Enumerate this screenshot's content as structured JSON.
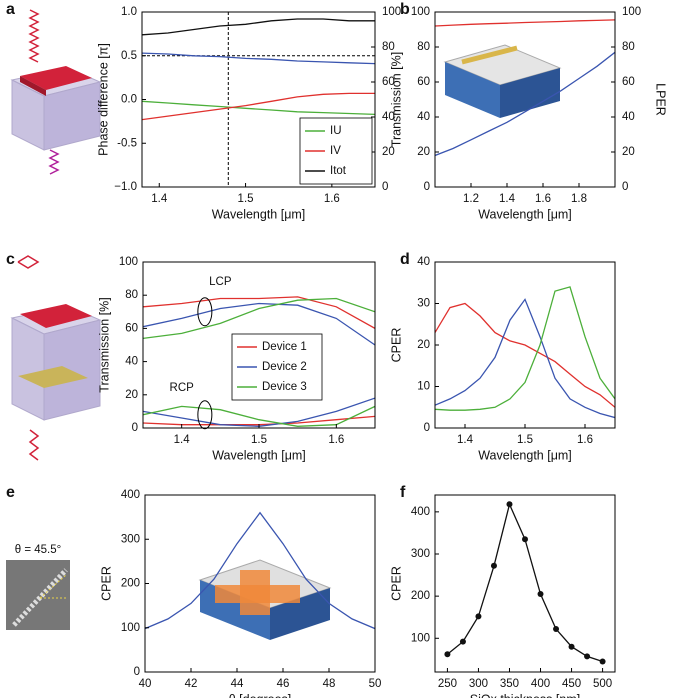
{
  "chart_data": [
    {
      "type": "line",
      "label": "a",
      "xlabel": "Wavelength [μm]",
      "ylabel": "Phase difference [π]",
      "xlim": [
        1.38,
        1.65
      ],
      "xticks": [
        1.4,
        1.5,
        1.6
      ],
      "ylim": [
        -1,
        1
      ],
      "yticks": [
        {
          "value": -1,
          "label": "−1.0"
        },
        -0.5,
        {
          "value": 0,
          "label": "0.0"
        },
        0.5,
        {
          "value": 1,
          "label": "1.0"
        }
      ],
      "y2lim": [
        0,
        100
      ],
      "y2ticks": [
        0,
        20,
        40,
        60,
        80,
        100
      ],
      "legend": "lower right",
      "hline": 0.5,
      "vline": 1.48,
      "x": [
        1.38,
        1.41,
        1.44,
        1.47,
        1.5,
        1.53,
        1.56,
        1.59,
        1.62,
        1.65
      ],
      "series": [
        {
          "name": "IU",
          "color": "#4caf3a",
          "values": [
            -0.02,
            -0.04,
            -0.06,
            -0.08,
            -0.1,
            -0.12,
            -0.14,
            -0.15,
            -0.16,
            -0.17
          ]
        },
        {
          "name": "IV",
          "color": "#e0312e",
          "values": [
            -0.23,
            -0.19,
            -0.15,
            -0.11,
            -0.07,
            -0.02,
            0.03,
            0.06,
            0.07,
            0.07
          ]
        },
        {
          "name": "Itot",
          "color": "#111111",
          "axis": "y2",
          "values": [
            87,
            88,
            90,
            92,
            93,
            95,
            96,
            96,
            95,
            95
          ]
        },
        {
          "color": "#3a55b0",
          "values": [
            0.53,
            0.52,
            0.5,
            0.49,
            0.47,
            0.46,
            0.44,
            0.43,
            0.42,
            0.41
          ]
        }
      ]
    },
    {
      "type": "line",
      "label": "b",
      "xlabel": "Wavelength [μm]",
      "ylabel": "Transmission [%]",
      "y2label": "LPER",
      "xlim": [
        1.0,
        2.0
      ],
      "xticks": [
        1.2,
        1.4,
        1.6,
        1.8
      ],
      "ylim": [
        0,
        100
      ],
      "yticks": [
        0,
        20,
        40,
        60,
        80,
        100
      ],
      "y2lim": [
        0,
        100
      ],
      "y2ticks": [
        0,
        20,
        40,
        60,
        80,
        100
      ],
      "x": [
        1.0,
        1.1,
        1.2,
        1.3,
        1.4,
        1.5,
        1.6,
        1.7,
        1.8,
        1.9,
        2.0
      ],
      "series": [
        {
          "color": "#e0312e",
          "values": [
            92,
            92.5,
            93,
            93.3,
            93.6,
            94,
            94.3,
            94.6,
            95,
            95.2,
            95.5
          ]
        },
        {
          "color": "#3a55b0",
          "axis": "y2",
          "values": [
            18,
            22,
            27,
            32,
            37,
            43,
            49,
            55,
            62,
            69,
            77
          ]
        }
      ]
    },
    {
      "type": "line",
      "label": "c",
      "xlabel": "Wavelength [μm]",
      "ylabel": "Transmission [%]",
      "xlim": [
        1.35,
        1.65
      ],
      "xticks": [
        1.4,
        1.5,
        1.6
      ],
      "ylim": [
        0,
        100
      ],
      "yticks": [
        0,
        20,
        40,
        60,
        80,
        100
      ],
      "legend": "center",
      "annotations": [
        "LCP",
        "RCP"
      ],
      "x": [
        1.35,
        1.4,
        1.45,
        1.5,
        1.55,
        1.6,
        1.65
      ],
      "series": [
        {
          "name": "Device 1",
          "color": "#e0312e",
          "values": [
            73,
            75,
            78,
            78,
            79,
            73,
            60
          ],
          "values_rcp": [
            3,
            2,
            2,
            2,
            3,
            5,
            7
          ]
        },
        {
          "name": "Device 2",
          "color": "#3a55b0",
          "values": [
            61,
            66,
            72,
            75,
            74,
            66,
            50
          ],
          "values_rcp": [
            10,
            6,
            2,
            1,
            4,
            10,
            18
          ]
        },
        {
          "name": "Device 3",
          "color": "#4caf3a",
          "values": [
            54,
            57,
            63,
            72,
            77,
            78,
            70
          ],
          "values_rcp": [
            8,
            13,
            11,
            5,
            1,
            2,
            13
          ]
        }
      ]
    },
    {
      "type": "line",
      "label": "d",
      "xlabel": "Wavelength [μm]",
      "ylabel": "CPER",
      "xlim": [
        1.35,
        1.65
      ],
      "xticks": [
        1.4,
        1.5,
        1.6
      ],
      "ylim": [
        0,
        40
      ],
      "yticks": [
        0,
        10,
        20,
        30,
        40
      ],
      "x": [
        1.35,
        1.375,
        1.4,
        1.425,
        1.45,
        1.475,
        1.5,
        1.525,
        1.55,
        1.575,
        1.6,
        1.625,
        1.65
      ],
      "series": [
        {
          "color": "#e0312e",
          "values": [
            23,
            29,
            30,
            27,
            23,
            21,
            20,
            18,
            16,
            13,
            10,
            8,
            5
          ]
        },
        {
          "color": "#3a55b0",
          "values": [
            5.5,
            7,
            9,
            12,
            17,
            26,
            31,
            22,
            12,
            7,
            5,
            3.5,
            2.5
          ]
        },
        {
          "color": "#4caf3a",
          "values": [
            4.5,
            4.3,
            4.3,
            4.5,
            5,
            7,
            11,
            20,
            33,
            34,
            22,
            12,
            7
          ]
        }
      ]
    },
    {
      "type": "line",
      "label": "e",
      "xlabel": "θ [degrees]",
      "ylabel": "CPER",
      "image_label": "θ = 45.5°",
      "xlim": [
        40,
        50
      ],
      "xticks": [
        40,
        42,
        44,
        46,
        48,
        50
      ],
      "ylim": [
        0,
        400
      ],
      "yticks": [
        0,
        100,
        200,
        300,
        400
      ],
      "x": [
        40,
        41,
        42,
        43,
        44,
        45,
        46,
        47,
        48,
        49,
        50
      ],
      "series": [
        {
          "color": "#3a55b0",
          "values": [
            98,
            120,
            155,
            210,
            290,
            360,
            290,
            210,
            155,
            120,
            98
          ]
        }
      ]
    },
    {
      "type": "line",
      "label": "f",
      "xlabel": "SiOx thickness [nm]",
      "ylabel": "CPER",
      "markers": true,
      "xlim": [
        230,
        520
      ],
      "xticks": [
        250,
        300,
        350,
        400,
        450,
        500
      ],
      "ylim": [
        20,
        440
      ],
      "yticks": [
        100,
        200,
        300,
        400
      ],
      "x": [
        250,
        275,
        300,
        325,
        350,
        375,
        400,
        425,
        450,
        475,
        500
      ],
      "series": [
        {
          "color": "#111111",
          "values": [
            62,
            92,
            152,
            272,
            418,
            335,
            205,
            122,
            80,
            57,
            45
          ]
        }
      ]
    }
  ]
}
